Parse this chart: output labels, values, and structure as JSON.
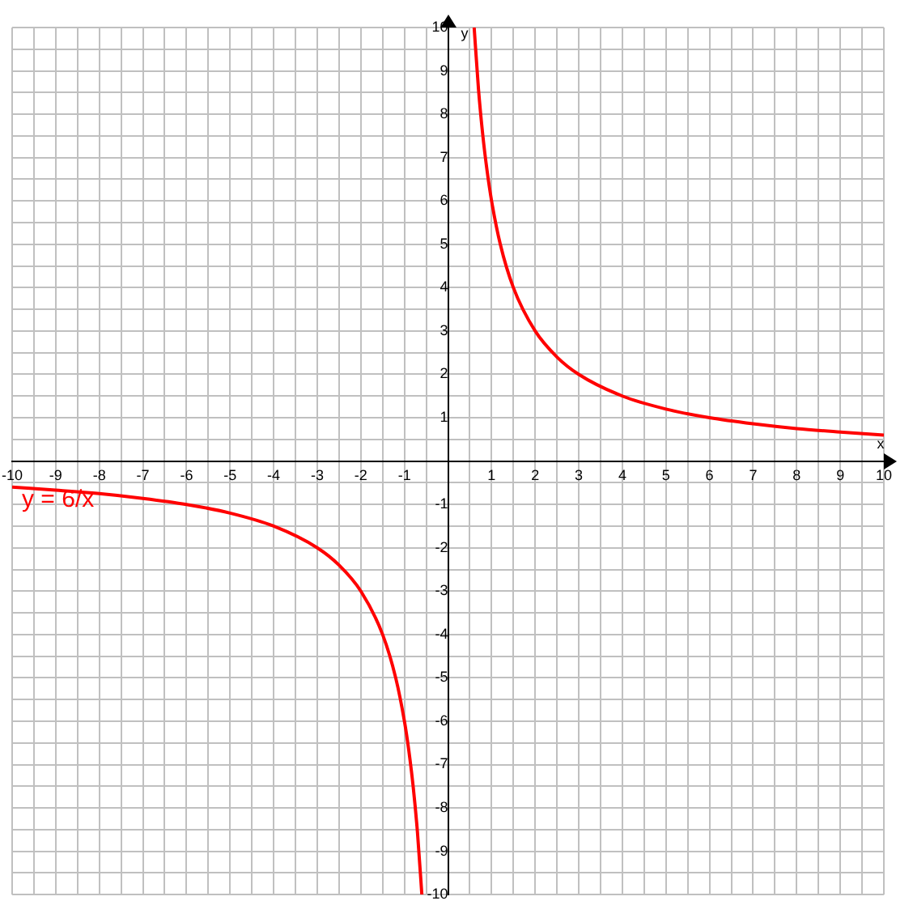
{
  "chart_data": {
    "type": "line",
    "xlabel": "x",
    "ylabel": "y",
    "annotations": [
      "y = 6/x"
    ],
    "series": [
      {
        "color": "#ff0000",
        "x": [
          0.6,
          0.7,
          0.8,
          0.9,
          1,
          1.2,
          1.5,
          2,
          2.5,
          3,
          4,
          5,
          6,
          7,
          8,
          9,
          10
        ],
        "values": [
          10,
          8.57,
          7.5,
          6.67,
          6,
          5,
          4,
          3,
          2.4,
          2,
          1.5,
          1.2,
          1,
          0.86,
          0.75,
          0.67,
          0.6
        ]
      },
      {
        "color": "#ff0000",
        "x": [
          -10,
          -9,
          -8,
          -7,
          -6,
          -5,
          -4,
          -3,
          -2.5,
          -2,
          -1.5,
          -1.2,
          -1,
          -0.9,
          -0.8,
          -0.7,
          -0.6
        ],
        "values": [
          -0.6,
          -0.67,
          -0.75,
          -0.86,
          -1,
          -1.2,
          -1.5,
          -2,
          -2.4,
          -3,
          -4,
          -5,
          -6,
          -6.67,
          -7.5,
          -8.57,
          -10
        ]
      }
    ],
    "xlim": [
      -10,
      10
    ],
    "ylim": [
      -10,
      10
    ],
    "xticks": [
      -10,
      {
        "value": -9.5,
        "label": null
      },
      -9,
      {
        "value": -8.5,
        "label": null
      },
      -8,
      {
        "value": -7.5,
        "label": null
      },
      -7,
      {
        "value": -6.5,
        "label": null
      },
      -6,
      {
        "value": -5.5,
        "label": null
      },
      -5,
      {
        "value": -4.5,
        "label": null
      },
      -4,
      {
        "value": -3.5,
        "label": null
      },
      -3,
      {
        "value": -2.5,
        "label": null
      },
      -2,
      {
        "value": -1.5,
        "label": null
      },
      -1,
      {
        "value": -0.5,
        "label": null
      },
      {
        "value": 0,
        "label": null
      },
      {
        "value": 0.5,
        "label": null
      },
      1,
      {
        "value": 1.5,
        "label": null
      },
      2,
      {
        "value": 2.5,
        "label": null
      },
      3,
      {
        "value": 3.5,
        "label": null
      },
      4,
      {
        "value": 4.5,
        "label": null
      },
      5,
      {
        "value": 5.5,
        "label": null
      },
      6,
      {
        "value": 6.5,
        "label": null
      },
      7,
      {
        "value": 7.5,
        "label": null
      },
      8,
      {
        "value": 8.5,
        "label": null
      },
      9,
      {
        "value": 9.5,
        "label": null
      },
      10
    ],
    "yticks": [
      -10,
      {
        "value": -9.5,
        "label": null
      },
      -9,
      {
        "value": -8.5,
        "label": null
      },
      -8,
      {
        "value": -7.5,
        "label": null
      },
      -7,
      {
        "value": -6.5,
        "label": null
      },
      -6,
      {
        "value": -5.5,
        "label": null
      },
      -5,
      {
        "value": -4.5,
        "label": null
      },
      -4,
      {
        "value": -3.5,
        "label": null
      },
      -3,
      {
        "value": -2.5,
        "label": null
      },
      -2,
      {
        "value": -1.5,
        "label": null
      },
      -1,
      {
        "value": -0.5,
        "label": null
      },
      {
        "value": 0,
        "label": null
      },
      {
        "value": 0.5,
        "label": null
      },
      1,
      {
        "value": 1.5,
        "label": null
      },
      2,
      {
        "value": 2.5,
        "label": null
      },
      3,
      {
        "value": 3.5,
        "label": null
      },
      4,
      {
        "value": 4.5,
        "label": null
      },
      5,
      {
        "value": 5.5,
        "label": null
      },
      6,
      {
        "value": 6.5,
        "label": null
      },
      7,
      {
        "value": 7.5,
        "label": null
      },
      8,
      {
        "value": 8.5,
        "label": null
      },
      9,
      {
        "value": 9.5,
        "label": null
      },
      10
    ],
    "grid": true,
    "legend": false,
    "marker": "none",
    "line_style": "solid"
  }
}
